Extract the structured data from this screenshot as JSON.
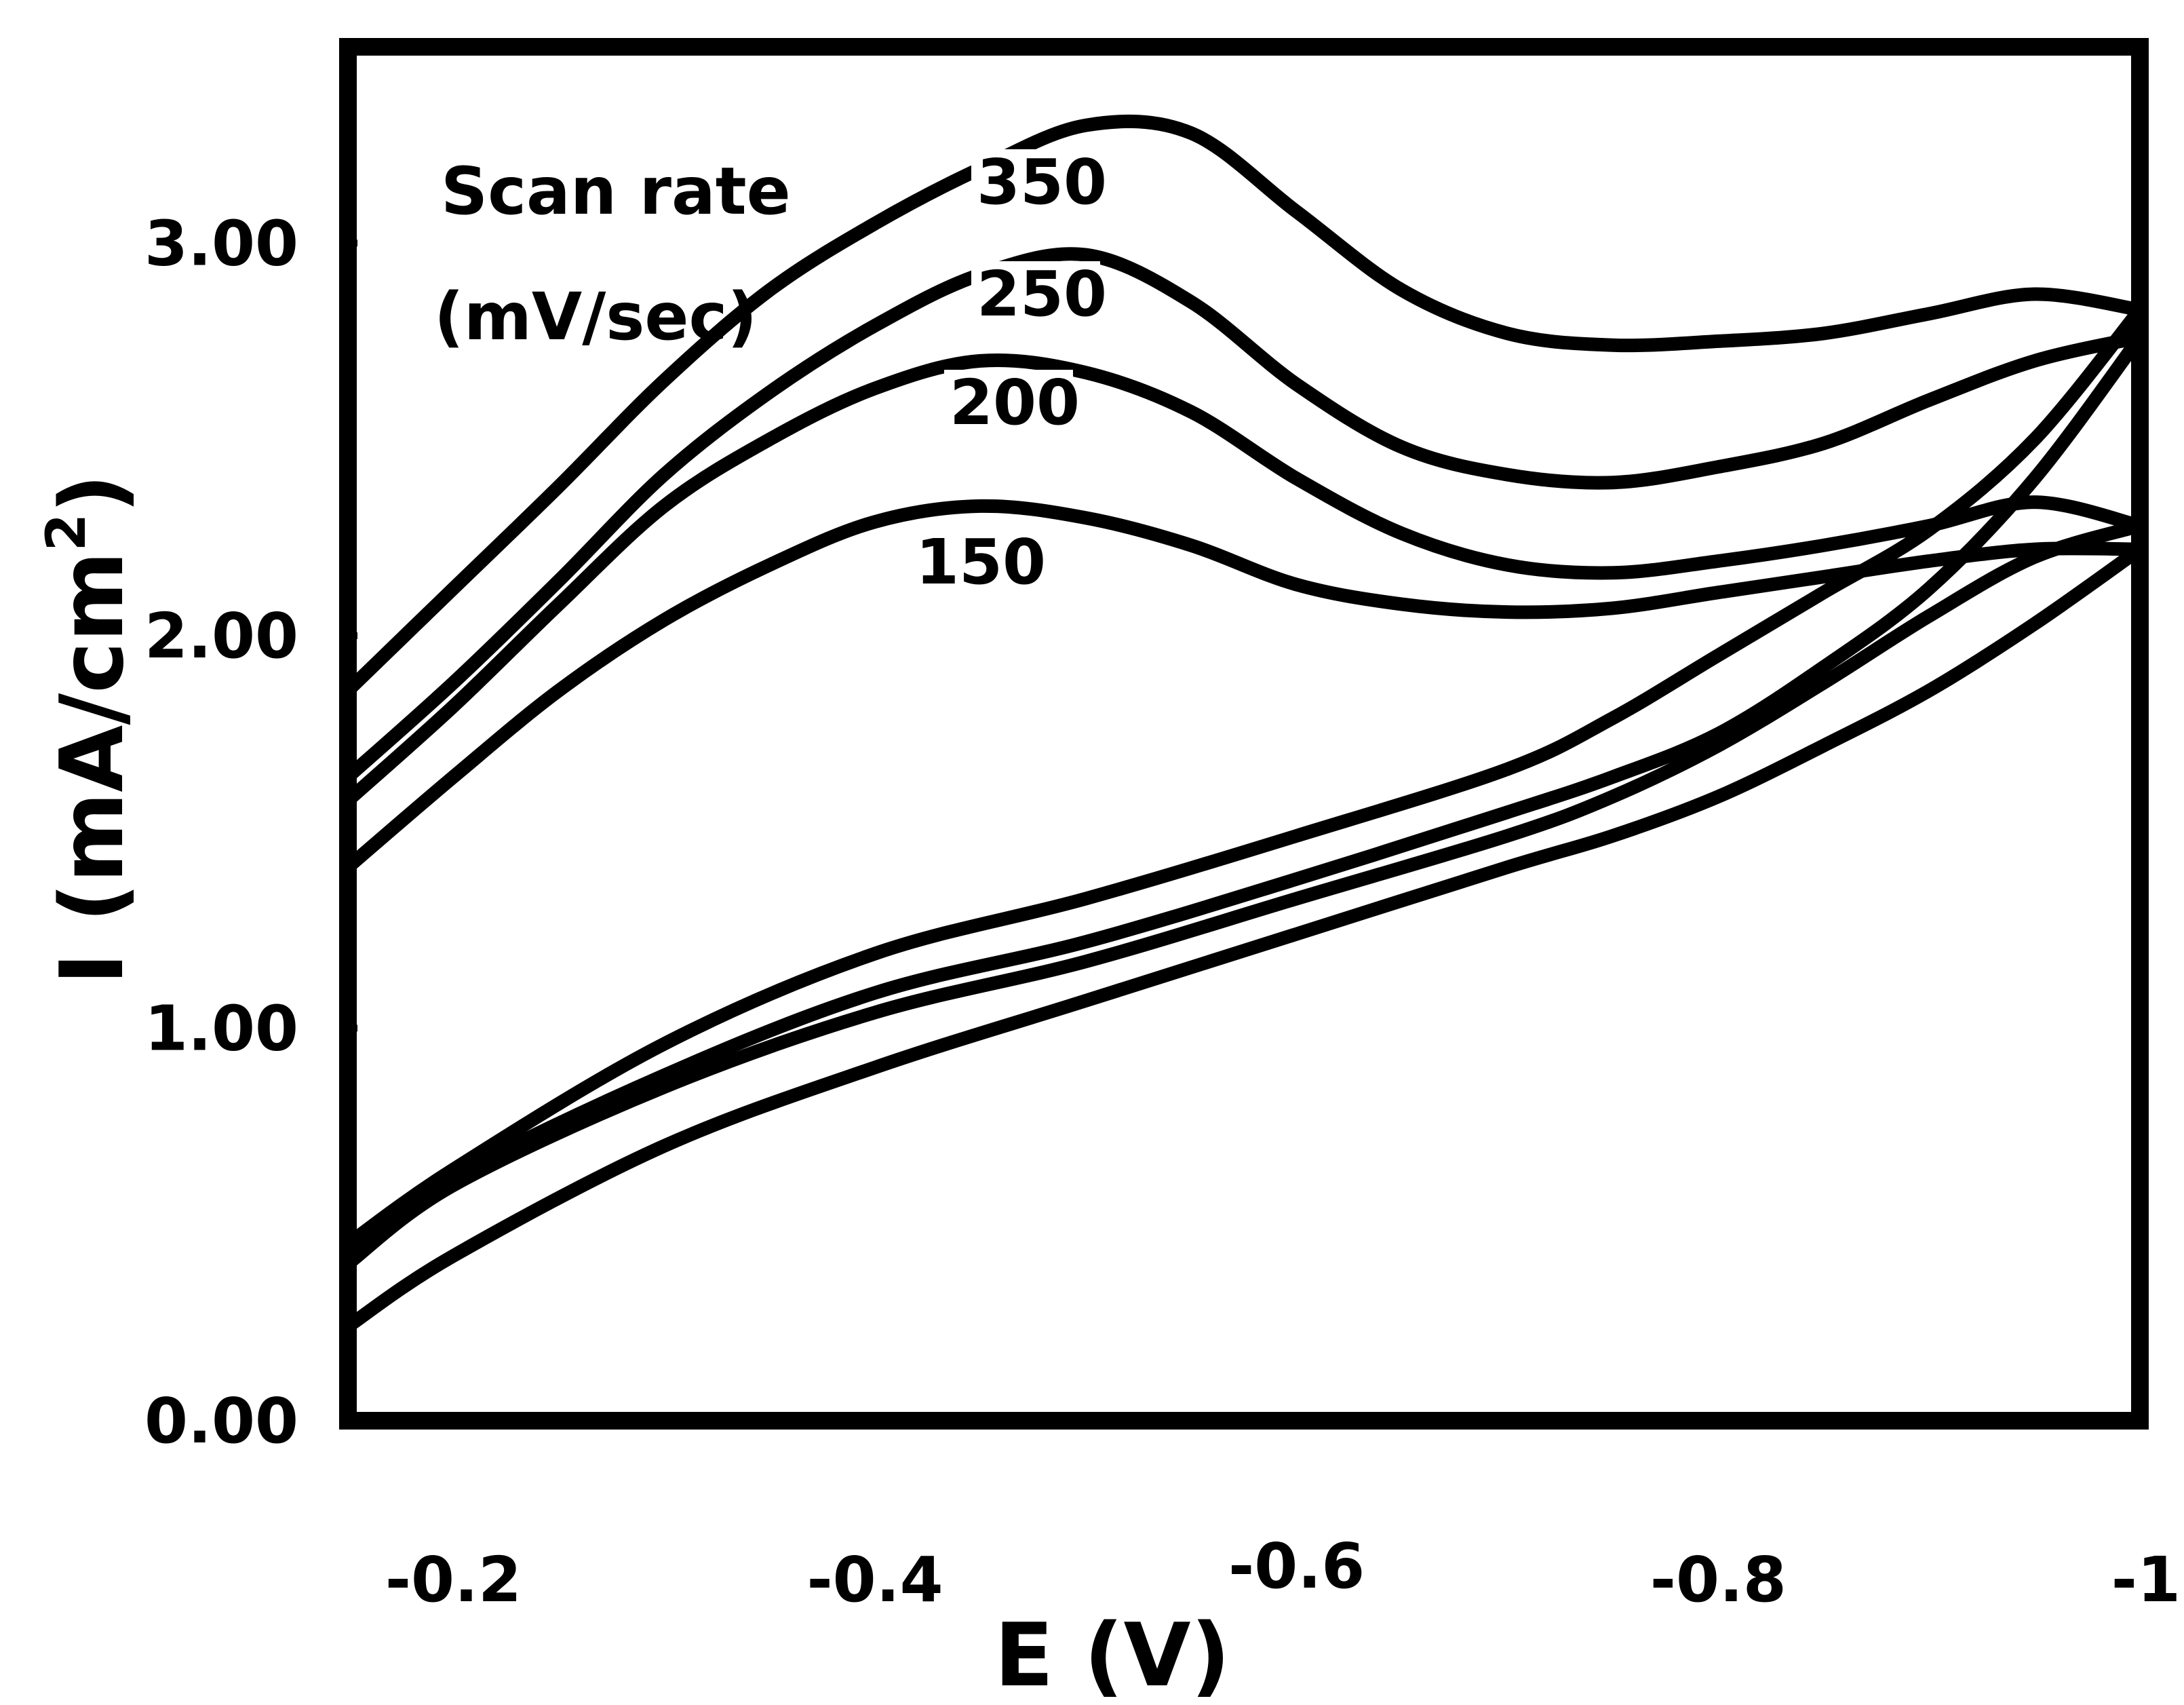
{
  "chart_data": {
    "type": "line",
    "title": "",
    "xlabel": "E (V)",
    "ylabel": "I (mA/cm",
    "ylabel_superscript": "2",
    "ylabel_close": ")",
    "x_ticks": [
      "-0.2",
      "-0.4",
      "-0.6",
      "-0.8",
      "-1"
    ],
    "y_ticks": [
      "0.00",
      "1.00",
      "2.00",
      "3.00"
    ],
    "xlim": [
      -0.15,
      -1.0
    ],
    "ylim": [
      0.0,
      3.5
    ],
    "grid": false,
    "legend": {
      "title_line1": "Scan rate",
      "title_line2": "(mV/sec)",
      "placement": "top-left"
    },
    "series": [
      {
        "name": "350",
        "forward": [
          [
            -0.15,
            1.86
          ],
          [
            -0.2,
            2.12
          ],
          [
            -0.25,
            2.38
          ],
          [
            -0.3,
            2.65
          ],
          [
            -0.35,
            2.88
          ],
          [
            -0.4,
            3.05
          ],
          [
            -0.45,
            3.19
          ],
          [
            -0.5,
            3.3
          ],
          [
            -0.55,
            3.28
          ],
          [
            -0.6,
            3.08
          ],
          [
            -0.65,
            2.88
          ],
          [
            -0.7,
            2.77
          ],
          [
            -0.75,
            2.74
          ],
          [
            -0.8,
            2.75
          ],
          [
            -0.85,
            2.77
          ],
          [
            -0.9,
            2.82
          ],
          [
            -0.95,
            2.87
          ],
          [
            -1.0,
            2.83
          ]
        ],
        "reverse": [
          [
            -1.0,
            2.83
          ],
          [
            -0.95,
            2.5
          ],
          [
            -0.9,
            2.27
          ],
          [
            -0.85,
            2.11
          ],
          [
            -0.8,
            1.95
          ],
          [
            -0.75,
            1.79
          ],
          [
            -0.7,
            1.66
          ],
          [
            -0.6,
            1.49
          ],
          [
            -0.5,
            1.33
          ],
          [
            -0.4,
            1.19
          ],
          [
            -0.3,
            0.96
          ],
          [
            -0.2,
            0.64
          ],
          [
            -0.15,
            0.45
          ]
        ]
      },
      {
        "name": "250",
        "forward": [
          [
            -0.15,
            1.64
          ],
          [
            -0.2,
            1.88
          ],
          [
            -0.25,
            2.14
          ],
          [
            -0.3,
            2.41
          ],
          [
            -0.35,
            2.62
          ],
          [
            -0.4,
            2.79
          ],
          [
            -0.45,
            2.92
          ],
          [
            -0.5,
            2.97
          ],
          [
            -0.55,
            2.85
          ],
          [
            -0.6,
            2.64
          ],
          [
            -0.65,
            2.48
          ],
          [
            -0.7,
            2.41
          ],
          [
            -0.75,
            2.39
          ],
          [
            -0.8,
            2.43
          ],
          [
            -0.85,
            2.49
          ],
          [
            -0.9,
            2.6
          ],
          [
            -0.95,
            2.7
          ],
          [
            -1.0,
            2.76
          ]
        ],
        "reverse": [
          [
            -1.0,
            2.76
          ],
          [
            -0.95,
            2.4
          ],
          [
            -0.9,
            2.12
          ],
          [
            -0.85,
            1.92
          ],
          [
            -0.8,
            1.75
          ],
          [
            -0.75,
            1.64
          ],
          [
            -0.7,
            1.55
          ],
          [
            -0.6,
            1.38
          ],
          [
            -0.5,
            1.22
          ],
          [
            -0.4,
            1.09
          ],
          [
            -0.3,
            0.88
          ],
          [
            -0.2,
            0.62
          ],
          [
            -0.15,
            0.42
          ]
        ]
      },
      {
        "name": "200",
        "forward": [
          [
            -0.15,
            1.58
          ],
          [
            -0.2,
            1.82
          ],
          [
            -0.25,
            2.08
          ],
          [
            -0.3,
            2.33
          ],
          [
            -0.35,
            2.5
          ],
          [
            -0.4,
            2.63
          ],
          [
            -0.45,
            2.7
          ],
          [
            -0.5,
            2.67
          ],
          [
            -0.55,
            2.57
          ],
          [
            -0.6,
            2.4
          ],
          [
            -0.65,
            2.26
          ],
          [
            -0.7,
            2.18
          ],
          [
            -0.75,
            2.16
          ],
          [
            -0.8,
            2.19
          ],
          [
            -0.85,
            2.23
          ],
          [
            -0.9,
            2.28
          ],
          [
            -0.95,
            2.34
          ],
          [
            -1.0,
            2.28
          ]
        ],
        "reverse": [
          [
            -1.0,
            2.28
          ],
          [
            -0.95,
            2.2
          ],
          [
            -0.9,
            2.05
          ],
          [
            -0.85,
            1.88
          ],
          [
            -0.8,
            1.72
          ],
          [
            -0.75,
            1.59
          ],
          [
            -0.7,
            1.49
          ],
          [
            -0.6,
            1.33
          ],
          [
            -0.5,
            1.17
          ],
          [
            -0.4,
            1.04
          ],
          [
            -0.3,
            0.85
          ],
          [
            -0.2,
            0.6
          ],
          [
            -0.15,
            0.4
          ]
        ]
      },
      {
        "name": "150",
        "forward": [
          [
            -0.15,
            1.41
          ],
          [
            -0.2,
            1.64
          ],
          [
            -0.25,
            1.86
          ],
          [
            -0.3,
            2.04
          ],
          [
            -0.35,
            2.18
          ],
          [
            -0.4,
            2.29
          ],
          [
            -0.45,
            2.33
          ],
          [
            -0.5,
            2.3
          ],
          [
            -0.55,
            2.23
          ],
          [
            -0.6,
            2.13
          ],
          [
            -0.65,
            2.08
          ],
          [
            -0.7,
            2.06
          ],
          [
            -0.75,
            2.07
          ],
          [
            -0.8,
            2.11
          ],
          [
            -0.85,
            2.15
          ],
          [
            -0.9,
            2.19
          ],
          [
            -0.95,
            2.22
          ],
          [
            -1.0,
            2.22
          ]
        ],
        "reverse": [
          [
            -1.0,
            2.22
          ],
          [
            -0.95,
            2.03
          ],
          [
            -0.9,
            1.86
          ],
          [
            -0.85,
            1.72
          ],
          [
            -0.8,
            1.59
          ],
          [
            -0.75,
            1.49
          ],
          [
            -0.7,
            1.41
          ],
          [
            -0.6,
            1.24
          ],
          [
            -0.5,
            1.07
          ],
          [
            -0.4,
            0.9
          ],
          [
            -0.3,
            0.7
          ],
          [
            -0.2,
            0.42
          ],
          [
            -0.15,
            0.24
          ]
        ]
      }
    ]
  }
}
